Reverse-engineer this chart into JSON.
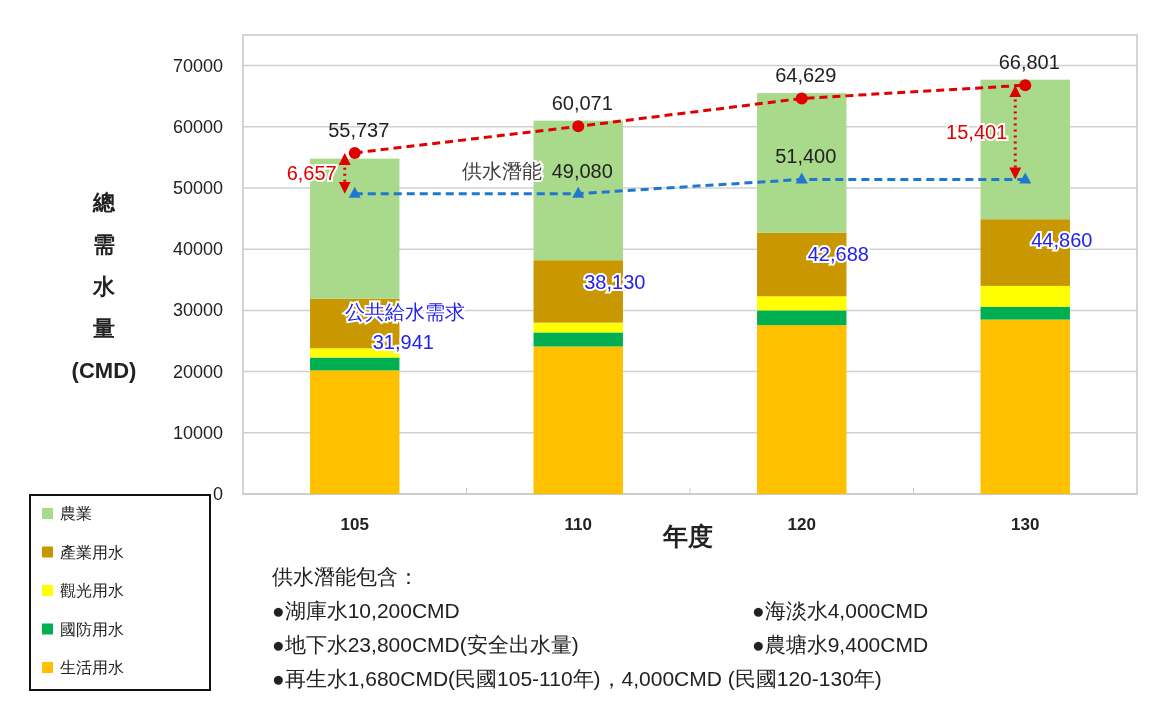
{
  "chart_data": {
    "type": "bar",
    "stacked": true,
    "categories": [
      "105",
      "110",
      "120",
      "130"
    ],
    "xlabel": "年度",
    "ylabel": "總需水量(CMD)",
    "ylim": [
      0,
      75000
    ],
    "yticks": [
      0,
      10000,
      20000,
      30000,
      40000,
      50000,
      60000,
      70000
    ],
    "grid": "y",
    "legend": "bottom left",
    "series": [
      {
        "name": "生活用水",
        "color": "#ffc000",
        "values": [
          20200,
          24100,
          27600,
          28500
        ]
      },
      {
        "name": "國防用水",
        "color": "#00b050",
        "values": [
          2100,
          2300,
          2400,
          2100
        ]
      },
      {
        "name": "觀光用水",
        "color": "#ffff00",
        "values": [
          1500,
          1600,
          2300,
          3400
        ]
      },
      {
        "name": "產業用水",
        "color": "#c99700",
        "values": [
          8100,
          10200,
          10400,
          10900
        ]
      },
      {
        "name": "農業",
        "color": "#a9d98a",
        "values": [
          22900,
          22800,
          22800,
          22800
        ]
      },
      {
        "type": "line",
        "color": "#e00000",
        "values": [
          55737,
          60071,
          64629,
          66801
        ],
        "marker": "circle",
        "line_style": "dashed",
        "value_labels": [
          "55,737",
          "60,071",
          "64,629",
          "66,801"
        ]
      },
      {
        "type": "line",
        "color": "#1f77d0",
        "values": [
          49080,
          49080,
          51400,
          51400
        ],
        "marker": "triangle",
        "line_style": "dashed",
        "value_labels": [
          null,
          "49,080",
          "51,400",
          null
        ]
      }
    ],
    "annotations": [
      {
        "text": "6,657",
        "x": "105",
        "y": 55737
      },
      {
        "text": "15,401",
        "x": "130",
        "y": 66801
      },
      {
        "text": "供水潛能",
        "x": "110",
        "y": 49080
      },
      {
        "text": "公共給水需求",
        "x": "105",
        "y": 31941
      },
      {
        "text": "31,941",
        "x": "105",
        "y": 31941
      },
      {
        "text": "38,130",
        "x": "110",
        "y": 38130
      },
      {
        "text": "42,688",
        "x": "120",
        "y": 42688
      },
      {
        "text": "44,860",
        "x": "130",
        "y": 44860
      },
      "供水潛能包含：",
      "●湖庫水10,200CMD",
      "●海淡水4,000CMD",
      "●地下水23,800CMD(安全出水量)",
      "●農塘水9,400CMD",
      "●再生水1,680CMD(民國105-110年)，4,000CMD (民國120-130年)"
    ]
  }
}
